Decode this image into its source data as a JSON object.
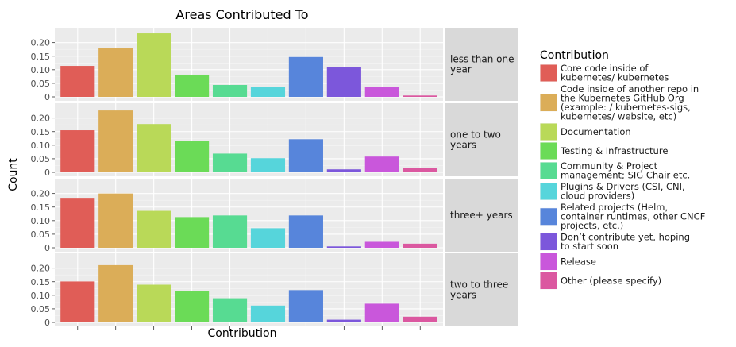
{
  "chart_data": {
    "type": "bar",
    "title": "Areas Contributed To",
    "xlabel": "Contribution",
    "ylabel": "Count",
    "ylim": [
      0,
      0.24
    ],
    "yticks": [
      0,
      0.05,
      0.1,
      0.15,
      0.2
    ],
    "ytick_labels": [
      "0",
      "0.05",
      "0.10",
      "0.15",
      "0.20"
    ],
    "grid": true,
    "legend_position": "right",
    "legend_title": "Contribution",
    "categories": [
      {
        "lines": [
          "Core code inside of",
          "kubernetes/  kubernetes"
        ],
        "color": "#e05d57"
      },
      {
        "lines": [
          "Code inside of another repo in",
          "the Kubernetes GitHub Org",
          "(example: /  kubernetes-sigs,",
          "kubernetes/  website, etc)"
        ],
        "color": "#dbad58"
      },
      {
        "lines": [
          "Documentation"
        ],
        "color": "#b9d958"
      },
      {
        "lines": [
          "Testing & Infrastructure"
        ],
        "color": "#6bdb57"
      },
      {
        "lines": [
          "Community & Project",
          "management; SIG Chair etc."
        ],
        "color": "#57db92"
      },
      {
        "lines": [
          "Plugins & Drivers (CSI, CNI,",
          "cloud providers)"
        ],
        "color": "#56d5db"
      },
      {
        "lines": [
          "Related projects (Helm,",
          "container runtimes, other CNCF",
          "projects, etc.)"
        ],
        "color": "#5785db"
      },
      {
        "lines": [
          "Don’t contribute yet, hoping",
          "to start soon"
        ],
        "color": "#7c57db"
      },
      {
        "lines": [
          "Release"
        ],
        "color": "#c957db"
      },
      {
        "lines": [
          "Other (please specify)"
        ],
        "color": "#db58a0"
      }
    ],
    "facets": [
      {
        "label_lines": [
          "less than one",
          "year"
        ],
        "values": [
          0.114,
          0.18,
          0.234,
          0.082,
          0.044,
          0.038,
          0.147,
          0.109,
          0.038,
          0.005
        ]
      },
      {
        "label_lines": [
          "one to two",
          "years"
        ],
        "values": [
          0.155,
          0.228,
          0.178,
          0.117,
          0.069,
          0.052,
          0.122,
          0.011,
          0.058,
          0.016
        ]
      },
      {
        "label_lines": [
          "three+ years"
        ],
        "values": [
          0.184,
          0.2,
          0.136,
          0.113,
          0.119,
          0.072,
          0.119,
          0.005,
          0.022,
          0.015
        ]
      },
      {
        "label_lines": [
          "two to three",
          "years"
        ],
        "values": [
          0.151,
          0.211,
          0.139,
          0.117,
          0.089,
          0.062,
          0.119,
          0.01,
          0.069,
          0.021
        ]
      }
    ]
  }
}
